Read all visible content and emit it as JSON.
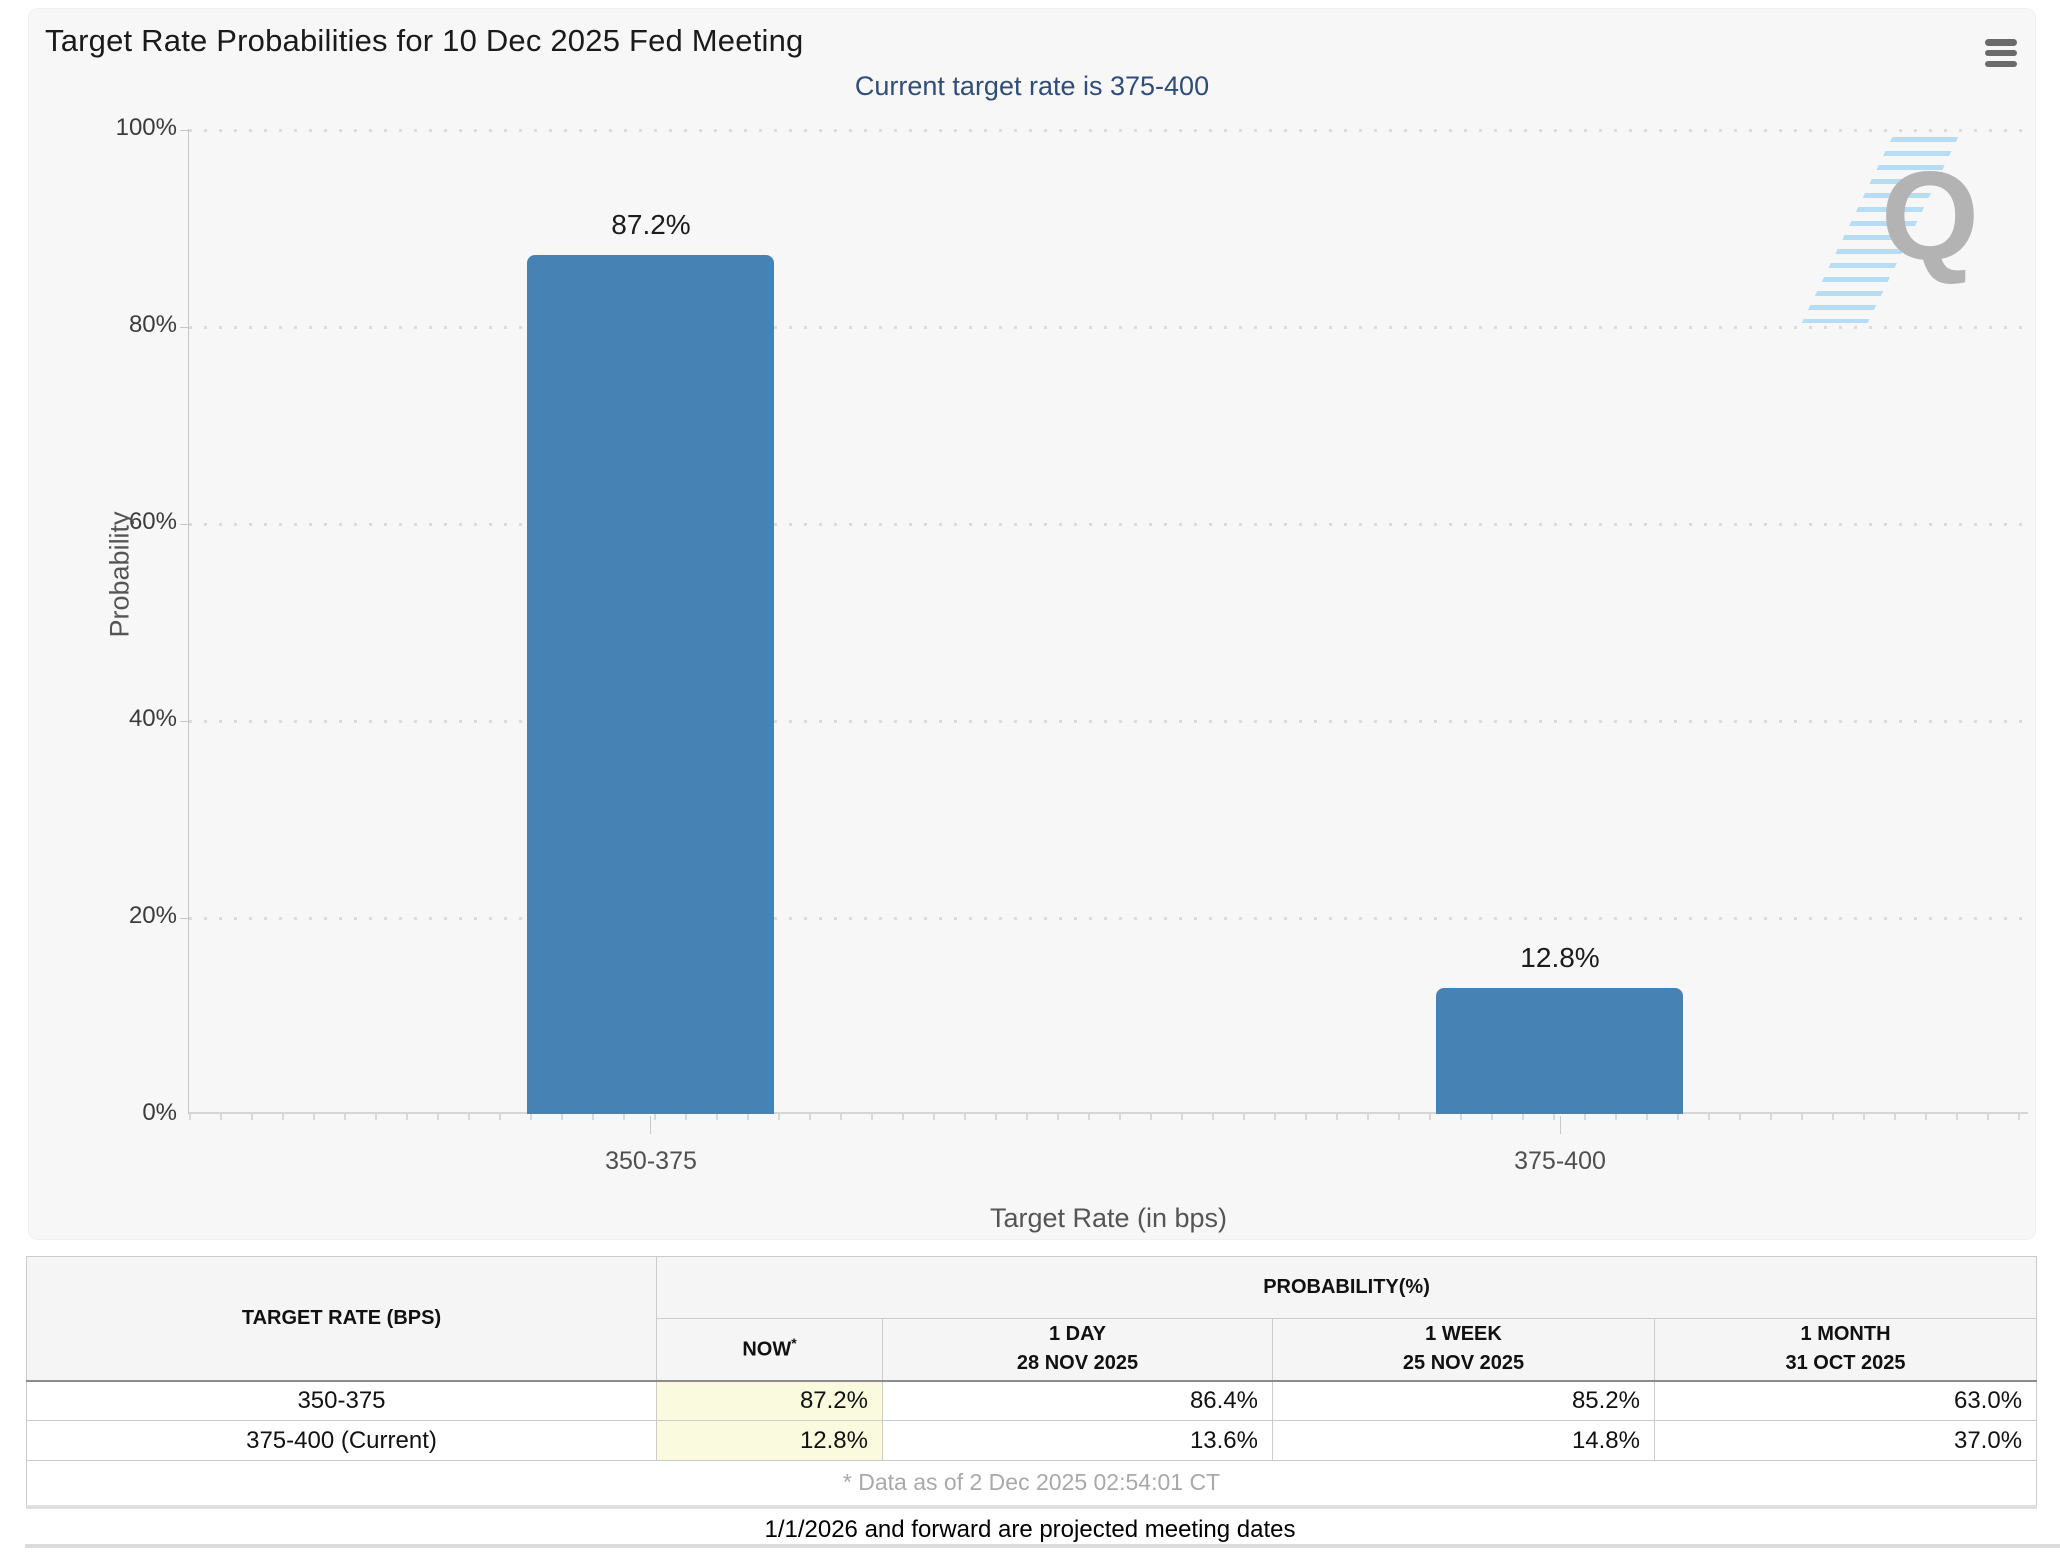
{
  "header": {
    "title": "Target Rate Probabilities for 10 Dec 2025 Fed Meeting",
    "subtitle": "Current target rate is 375-400"
  },
  "chart_data": {
    "type": "bar",
    "title": "Target Rate Probabilities for 10 Dec 2025 Fed Meeting",
    "subtitle": "Current target rate is 375-400",
    "categories": [
      "350-375",
      "375-400"
    ],
    "values": [
      87.2,
      12.8
    ],
    "value_labels": [
      "87.2%",
      "12.8%"
    ],
    "xlabel": "Target Rate (in bps)",
    "ylabel": "Probability",
    "ylim": [
      0,
      100
    ],
    "yticks": [
      "100%",
      "80%",
      "60%",
      "40%",
      "20%",
      "0%"
    ],
    "grid": "horizontal dotted",
    "legend": "none",
    "bar_color": "#4682b4",
    "watermark": "Q"
  },
  "table": {
    "col1_header": "TARGET RATE (BPS)",
    "group_header": "PROBABILITY(%)",
    "columns": [
      {
        "label": "NOW",
        "note": "*"
      },
      {
        "label": "1 DAY",
        "date": "28 NOV 2025"
      },
      {
        "label": "1 WEEK",
        "date": "25 NOV 2025"
      },
      {
        "label": "1 MONTH",
        "date": "31 OCT 2025"
      }
    ],
    "rows": [
      {
        "rate": "350-375",
        "values": [
          "87.2%",
          "86.4%",
          "85.2%",
          "63.0%"
        ]
      },
      {
        "rate": "375-400 (Current)",
        "values": [
          "12.8%",
          "13.6%",
          "14.8%",
          "37.0%"
        ]
      }
    ],
    "footnote": "* Data as of 2 Dec 2025 02:54:01 CT"
  },
  "footer": {
    "note": "1/1/2026 and forward are projected meeting dates"
  }
}
